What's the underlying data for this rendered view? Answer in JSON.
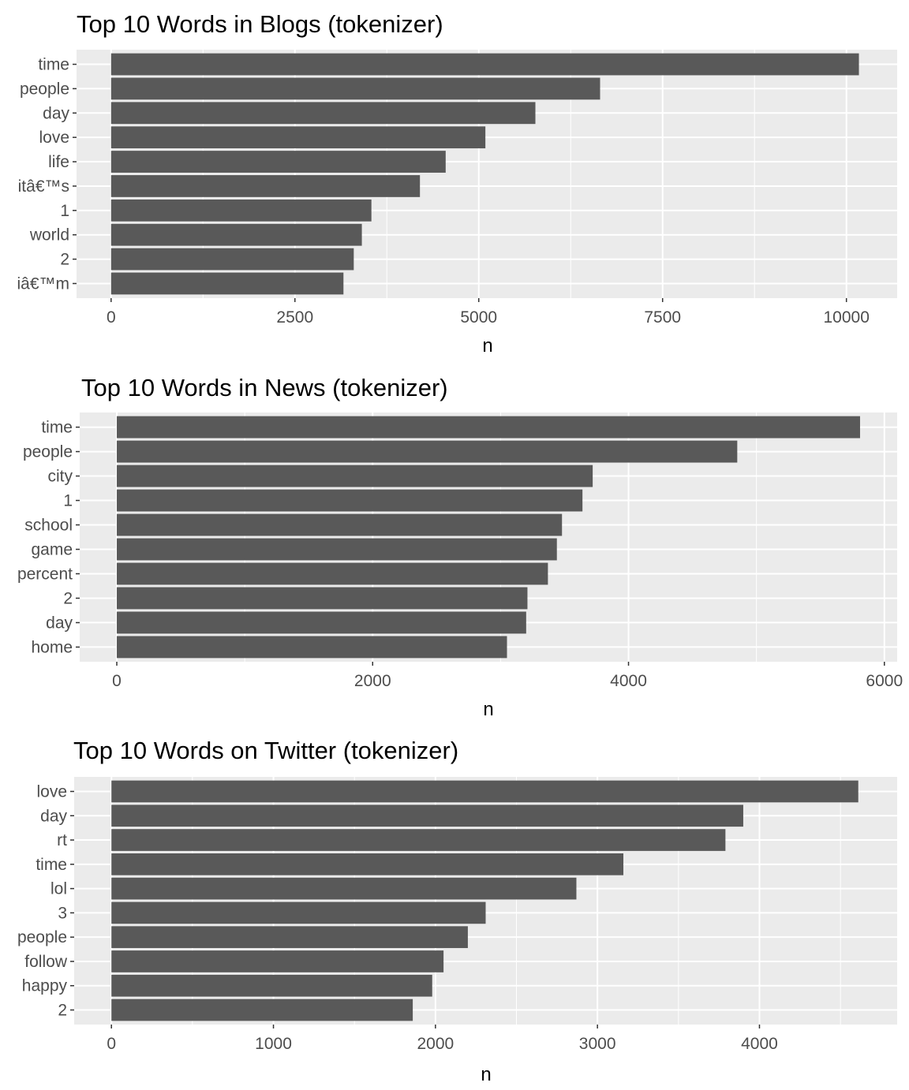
{
  "chart_data": [
    {
      "type": "bar",
      "orientation": "horizontal",
      "title": "Top 10 Words in Blogs (tokenizer)",
      "xlabel": "n",
      "ylabel": "",
      "categories": [
        "time",
        "people",
        "day",
        "love",
        "life",
        "itâ€™s",
        "1",
        "world",
        "2",
        "iâ€™m"
      ],
      "values": [
        10170,
        6650,
        5770,
        5090,
        4550,
        4200,
        3540,
        3410,
        3300,
        3160
      ],
      "xlim": [
        -470,
        10690
      ],
      "x_ticks": [
        0,
        2500,
        5000,
        7500,
        10000
      ],
      "x_tick_labels": [
        "0",
        "2500",
        "5000",
        "7500",
        "10000"
      ],
      "bar_color": "#595959",
      "panel_color": "#ebebeb",
      "grid": true,
      "legend": "none"
    },
    {
      "type": "bar",
      "orientation": "horizontal",
      "title": "Top 10 Words in News (tokenizer)",
      "xlabel": "n",
      "ylabel": "",
      "categories": [
        "time",
        "people",
        "city",
        "1",
        "school",
        "game",
        "percent",
        "2",
        "day",
        "home"
      ],
      "values": [
        5810,
        4850,
        3720,
        3640,
        3480,
        3440,
        3370,
        3210,
        3200,
        3050
      ],
      "xlim": [
        -290,
        6100
      ],
      "x_ticks": [
        0,
        2000,
        4000,
        6000
      ],
      "x_tick_labels": [
        "0",
        "2000",
        "4000",
        "6000"
      ],
      "bar_color": "#595959",
      "panel_color": "#ebebeb",
      "grid": true,
      "legend": "none"
    },
    {
      "type": "bar",
      "orientation": "horizontal",
      "title": "Top 10 Words on Twitter (tokenizer)",
      "xlabel": "n",
      "ylabel": "",
      "categories": [
        "love",
        "day",
        "rt",
        "time",
        "lol",
        "3",
        "people",
        "follow",
        "happy",
        "2"
      ],
      "values": [
        4610,
        3900,
        3790,
        3160,
        2870,
        2310,
        2200,
        2050,
        1980,
        1860
      ],
      "xlim": [
        -230,
        4850
      ],
      "x_ticks": [
        0,
        1000,
        2000,
        3000,
        4000
      ],
      "x_tick_labels": [
        "0",
        "1000",
        "2000",
        "3000",
        "4000"
      ],
      "bar_color": "#595959",
      "panel_color": "#ebebeb",
      "grid": true,
      "legend": "none"
    }
  ]
}
